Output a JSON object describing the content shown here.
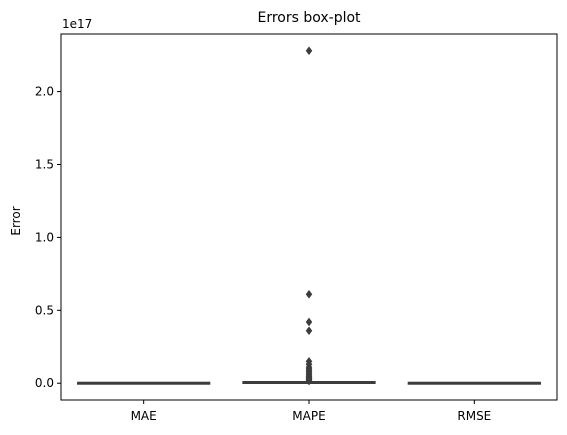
{
  "chart_data": {
    "type": "box",
    "title": "Errors box-plot",
    "xlabel": "",
    "ylabel": "Error",
    "y_scale_label": "1e17",
    "ylim": [
      -0.115,
      2.395
    ],
    "ytick_values": [
      0.0,
      0.5,
      1.0,
      1.5,
      2.0
    ],
    "ytick_labels": [
      "0.0",
      "0.5",
      "1.0",
      "1.5",
      "2.0"
    ],
    "units": "1e17",
    "categories": [
      "MAE",
      "MAPE",
      "RMSE"
    ],
    "boxes": [
      {
        "name": "MAE",
        "q1": 0,
        "median": 0,
        "q3": 0,
        "whisker_low": 0,
        "whisker_high": 0,
        "outliers": []
      },
      {
        "name": "MAPE",
        "q1": 0,
        "median": 0,
        "q3": 0.005,
        "whisker_low": 0,
        "whisker_high": 0.01,
        "outliers": [
          2.28,
          0.61,
          0.42,
          0.36,
          0.15,
          0.13,
          0.11,
          0.1,
          0.09,
          0.08,
          0.07,
          0.06,
          0.05,
          0.045,
          0.04,
          0.035,
          0.03,
          0.025,
          0.02,
          0.015
        ]
      },
      {
        "name": "RMSE",
        "q1": 0,
        "median": 0,
        "q3": 0,
        "whisker_low": 0,
        "whisker_high": 0,
        "outliers": []
      }
    ],
    "box_color": "#3d3d3d",
    "grid": false,
    "legend": "none"
  }
}
